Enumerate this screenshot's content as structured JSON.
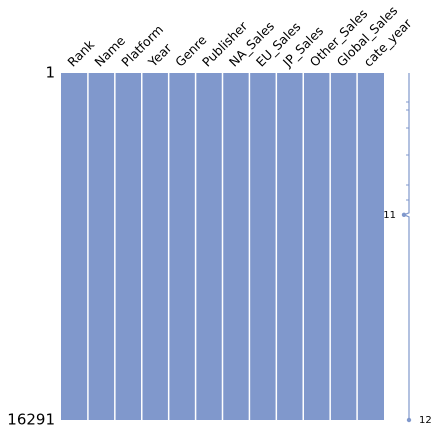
{
  "chart_data": {
    "type": "matrix",
    "columns": [
      "Rank",
      "Name",
      "Platform",
      "Year",
      "Genre",
      "Publisher",
      "NA_Sales",
      "EU_Sales",
      "JP_Sales",
      "Other_Sales",
      "Global_Sales",
      "cate_year"
    ],
    "color": "#8098cc",
    "ylim": [
      1,
      16291
    ],
    "yticks": [
      1,
      16291
    ],
    "sparkline": {
      "xlim": [
        11,
        12
      ],
      "min": {
        "row": 6660,
        "value": 11
      },
      "max": {
        "row": 16291,
        "value": 12
      }
    }
  }
}
